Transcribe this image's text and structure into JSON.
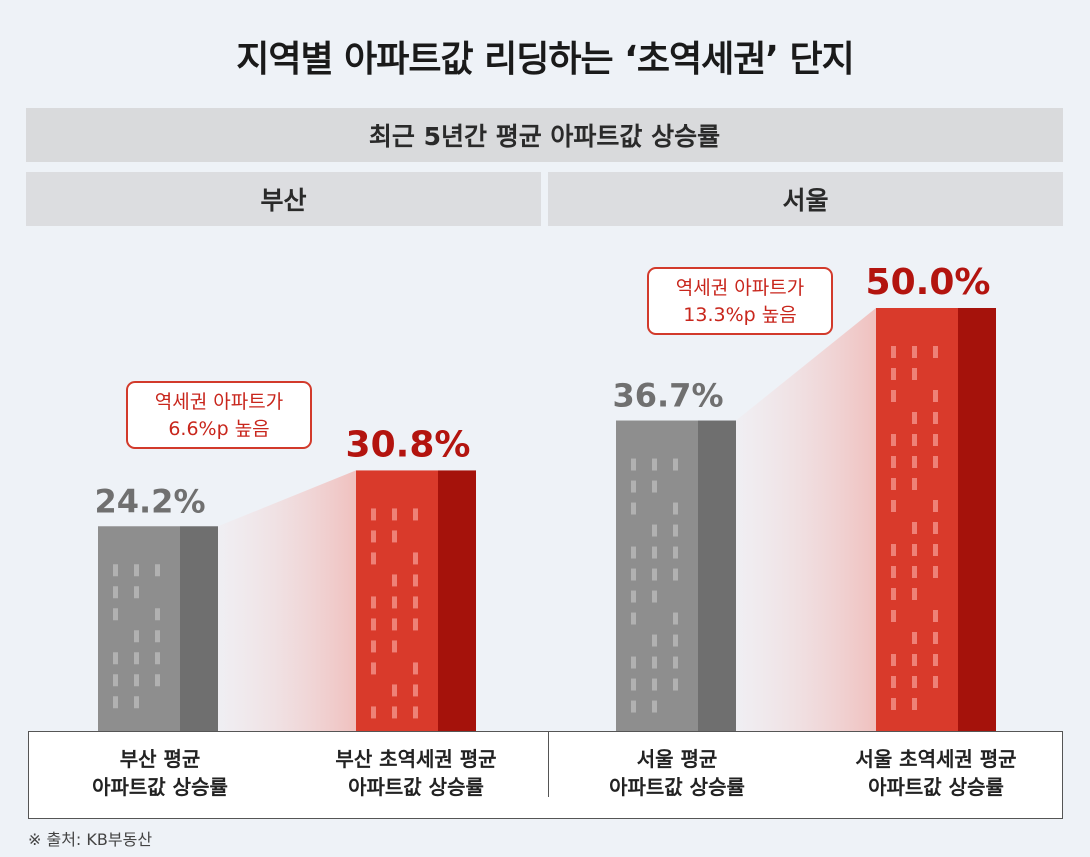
{
  "title": "지역별 아파트값 리딩하는 ‘초역세권’ 단지",
  "subtitle": "최근 5년간 평균 아파트값 상승률",
  "source": "※ 출처: KB부동산",
  "colors": {
    "average": "#8e8e8e",
    "average_dark": "#6f6f6f",
    "premium": "#d93a2b",
    "premium_dark": "#a5120b",
    "value_average": "#707070",
    "value_premium": "#b3140f"
  },
  "chart_data": {
    "type": "bar",
    "unit": "%",
    "groups": [
      {
        "region": "부산",
        "categories": [
          "부산 평균\n아파트값 상승률",
          "부산 초역세권 평균\n아파트값 상승률"
        ],
        "values": [
          24.2,
          30.8
        ],
        "value_labels": [
          "24.2%",
          "30.8%"
        ],
        "annotation": [
          "역세권 아파트가",
          "6.6%p 높음"
        ]
      },
      {
        "region": "서울",
        "categories": [
          "서울 평균\n아파트값 상승률",
          "서울 초역세권 평균\n아파트값 상승률"
        ],
        "values": [
          36.7,
          50.0
        ],
        "value_labels": [
          "36.7%",
          "50.0%"
        ],
        "annotation": [
          "역세권 아파트가",
          "13.3%p 높음"
        ]
      }
    ]
  }
}
